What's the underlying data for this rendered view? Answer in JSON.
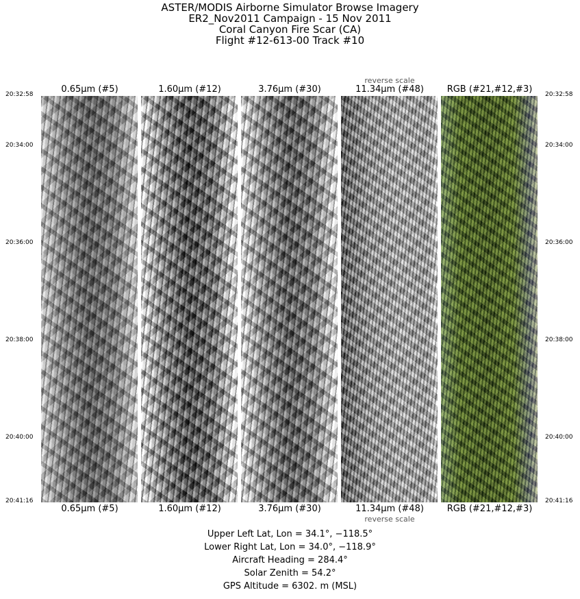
{
  "title_lines": [
    "ASTER/MODIS Airborne Simulator Browse Imagery",
    "ER2_Nov2011 Campaign - 15 Nov 2011",
    "Coral Canyon Fire Scar (CA)",
    "Flight #12-613-00 Track #10"
  ],
  "time_labels": [
    "20:32:58",
    "20:34:00",
    "20:36:00",
    "20:38:00",
    "20:40:00",
    "20:41:16"
  ],
  "panels": [
    {
      "label": "0.65μm (#5)"
    },
    {
      "label": "1.60μm (#12)"
    },
    {
      "label": "3.76μm (#30)"
    },
    {
      "label": "11.34μm (#48)",
      "note": "reverse scale"
    },
    {
      "label": "RGB (#21,#12,#3)"
    }
  ],
  "info": {
    "upper_left": "Upper Left Lat, Lon =   34.1°, −118.5°",
    "lower_right": "Lower Right Lat, Lon =   34.0°, −118.9°",
    "heading": "Aircraft Heading =  284.4°",
    "solar_zenith": "Solar Zenith =   54.2°",
    "gps_altitude": "GPS Altitude =   6302. m (MSL)"
  }
}
